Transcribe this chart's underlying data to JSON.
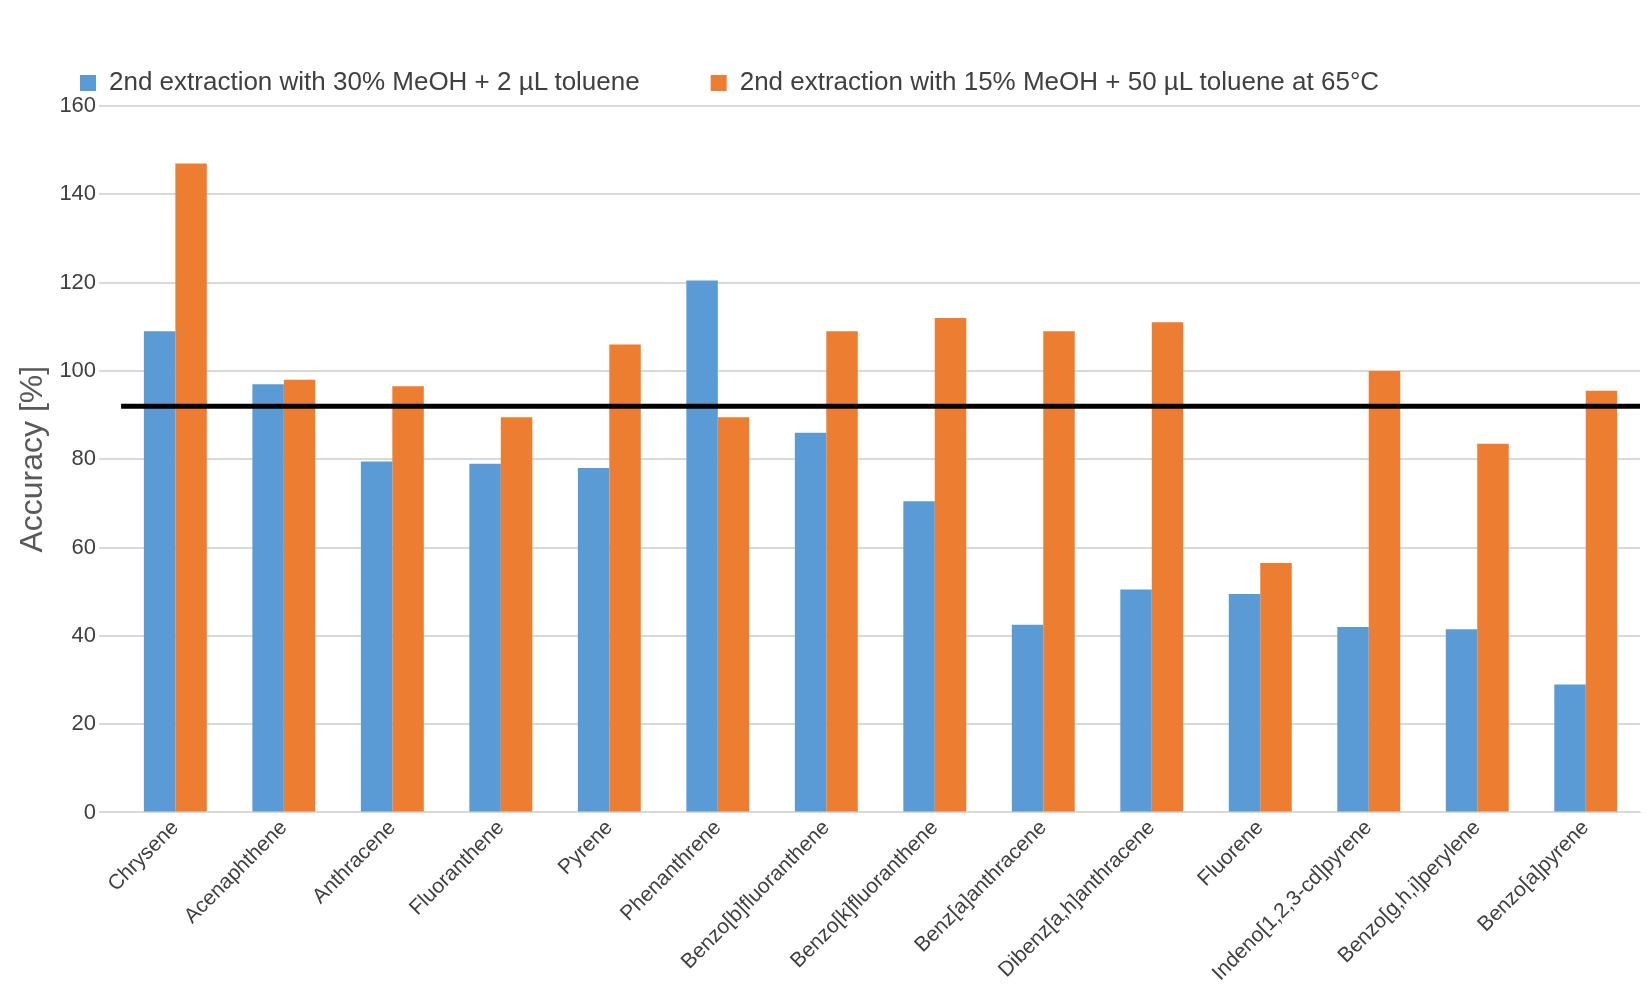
{
  "chart_data": {
    "type": "bar",
    "ylabel": "Accuracy [%]",
    "categories": [
      "Chrysene",
      "Acenaphthene",
      "Anthracene",
      "Fluoranthene",
      "Pyrene",
      "Phenanthrene",
      "Benzo[b]fluoranthene",
      "Benzo[k]fluoranthene",
      "Benz[a]anthracene",
      "Dibenz[a,h]anthracene",
      "Fluorene",
      "Indeno[1,2,3-cd]pyrene",
      "Benzo[g,h,i]perylene",
      "Benzo[a]pyrene"
    ],
    "series": [
      {
        "name": "2nd extraction with 30% MeOH + 2 µL toluene",
        "color": "#5b9bd5",
        "values": [
          109,
          97,
          79.5,
          79,
          78,
          120.5,
          86,
          70.5,
          42.5,
          50.5,
          49.5,
          42,
          41.5,
          29
        ]
      },
      {
        "name": "2nd extraction with 15% MeOH + 50 µL toluene at 65°C",
        "color": "#ed7d31",
        "values": [
          147,
          98,
          96.5,
          89.5,
          106,
          89.5,
          109,
          112,
          109,
          111,
          56.5,
          100,
          83.5,
          95.5
        ]
      }
    ],
    "ylim": [
      0,
      160
    ],
    "yticks": [
      0,
      20,
      40,
      60,
      80,
      100,
      120,
      140,
      160
    ],
    "grid": "y",
    "legend": "top",
    "ref_lines": [
      {
        "axis": "y",
        "value": 92,
        "color": "#000000"
      }
    ]
  }
}
